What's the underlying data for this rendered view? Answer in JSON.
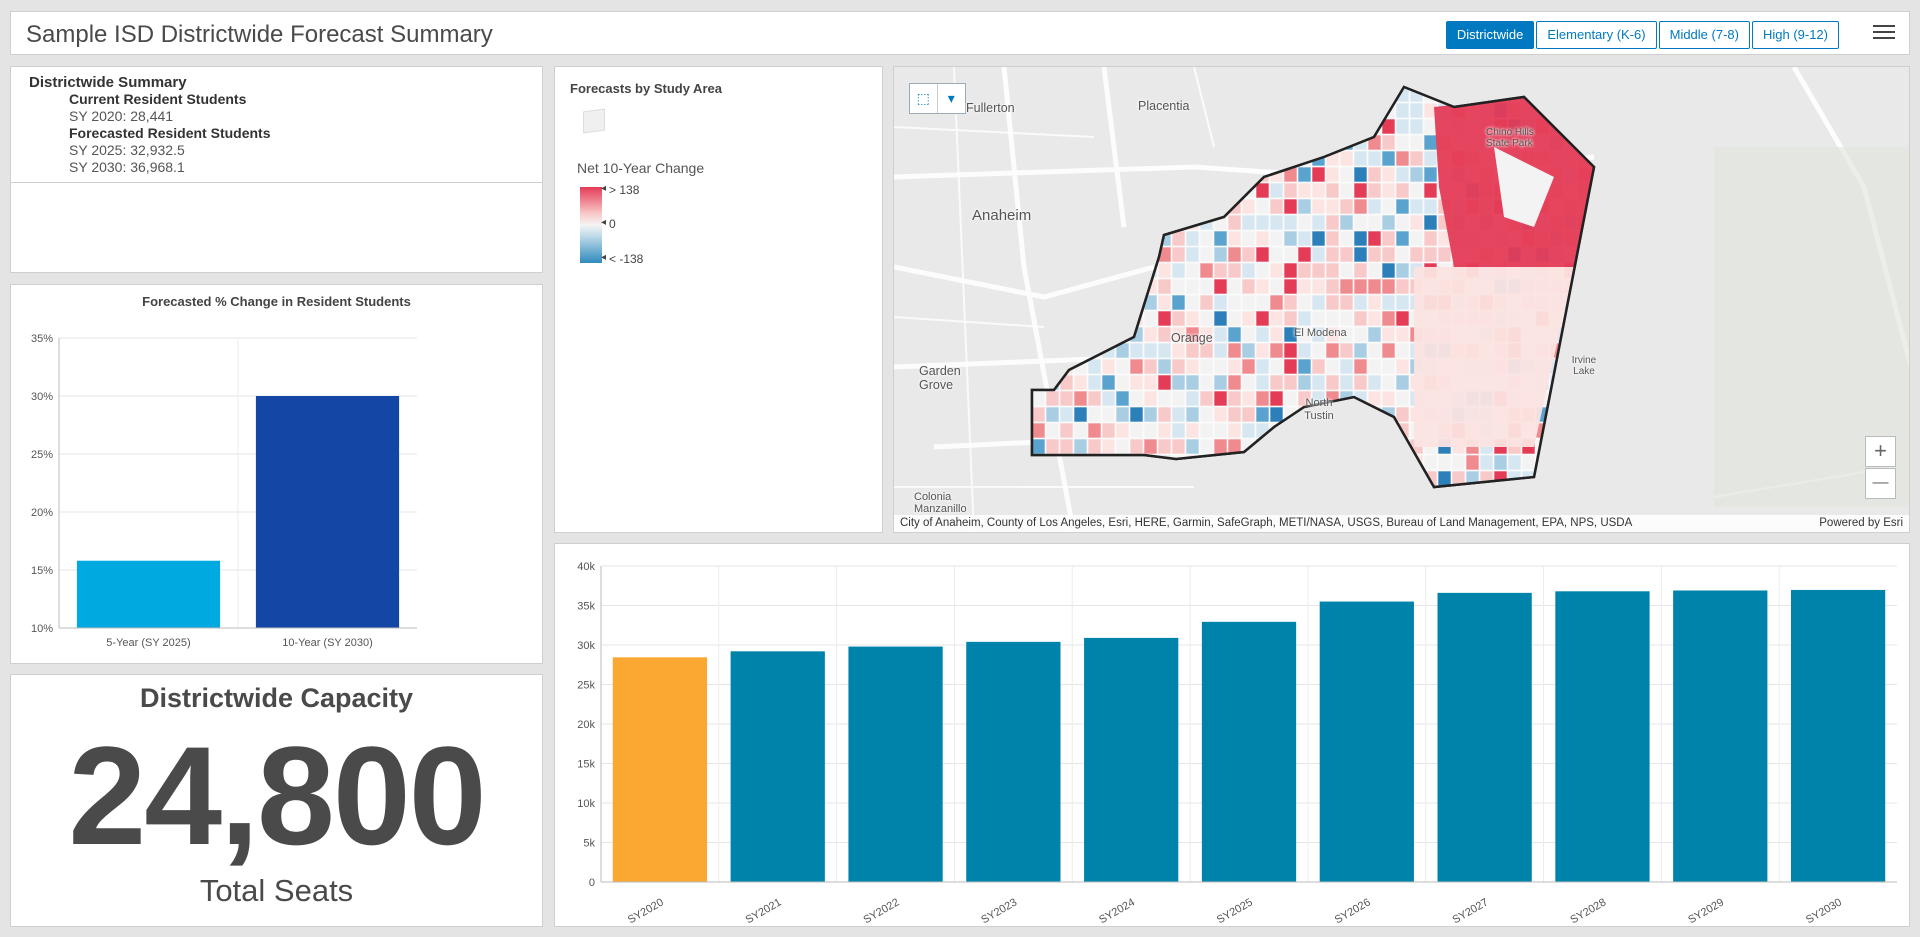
{
  "header": {
    "title": "Sample ISD Districtwide Forecast Summary",
    "tabs": [
      "Districtwide",
      "Elementary (K-6)",
      "Middle (7-8)",
      "High (9-12)"
    ],
    "active_tab": "Districtwide"
  },
  "summary": {
    "heading": "Districtwide Summary",
    "current_label": "Current Resident Students",
    "current_value": "SY 2020: 28,441",
    "forecast_label": "Forecasted Resident Students",
    "forecast_2025": "SY 2025: 32,932.5",
    "forecast_2030": "SY 2030: 36,968.1"
  },
  "capacity": {
    "title": "Districtwide Capacity",
    "value": "24,800",
    "unit": "Total Seats"
  },
  "legend": {
    "title": "Forecasts by Study Area",
    "subtitle": "Net 10-Year Change",
    "high": "> 138",
    "mid": "0",
    "low": "< -138"
  },
  "map": {
    "attribution": "City of Anaheim, County of Los Angeles, Esri, HERE, Garmin, SafeGraph, METI/NASA, USGS, Bureau of Land Management, EPA, NPS, USDA",
    "powered_by": "Powered by Esri",
    "places": [
      "Fullerton",
      "Placentia",
      "Anaheim",
      "Chino Hills State Park",
      "El Modena",
      "Orange",
      "Garden Grove",
      "North Tustin",
      "Colonia Manzanillo",
      "Irvine Lake"
    ],
    "zoom_in": "+",
    "zoom_out": "—"
  },
  "chart_data": [
    {
      "type": "bar",
      "title": "Forecasted % Change in Resident Students",
      "categories": [
        "5-Year (SY 2025)",
        "10-Year (SY 2030)"
      ],
      "values": [
        15.8,
        30.0
      ],
      "colors": [
        "#00a9e0",
        "#1346a5"
      ],
      "ylim": [
        10,
        35
      ],
      "yticks": [
        "10%",
        "15%",
        "20%",
        "25%",
        "30%",
        "35%"
      ],
      "grid": true
    },
    {
      "type": "bar",
      "categories": [
        "SY2020",
        "SY2021",
        "SY2022",
        "SY2023",
        "SY2024",
        "SY2025",
        "SY2026",
        "SY2027",
        "SY2028",
        "SY2029",
        "SY2030"
      ],
      "values": [
        28441,
        29200,
        29800,
        30400,
        30900,
        32932.5,
        35500,
        36600,
        36800,
        36900,
        36968.1
      ],
      "colors": [
        "#faa832",
        "#0083aa"
      ],
      "ylim": [
        0,
        40000
      ],
      "yticks": [
        "0",
        "5k",
        "10k",
        "15k",
        "20k",
        "25k",
        "30k",
        "35k",
        "40k"
      ],
      "grid": true
    }
  ]
}
